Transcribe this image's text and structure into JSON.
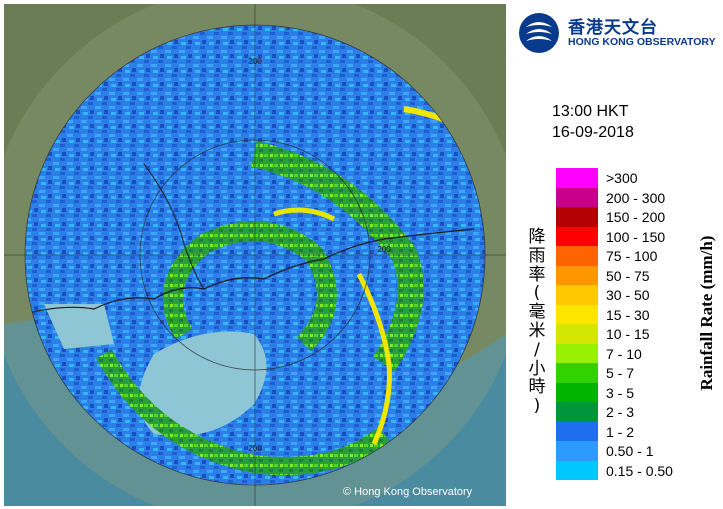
{
  "time": "13:00 HKT",
  "date": "16-09-2018",
  "credit": "© Hong Kong Observatory",
  "logo": {
    "chinese": "香港天文台",
    "english": "HONG KONG OBSERVATORY"
  },
  "range_ring_labels": [
    "200",
    "200",
    "200"
  ],
  "legend": {
    "title_chinese": "降雨率(毫米/小時)",
    "title_english": "Rainfall Rate (mm/h)",
    "classes": [
      {
        "label": ">300",
        "color": "#ff00ff"
      },
      {
        "label": "200 - 300",
        "color": "#c8008c"
      },
      {
        "label": "150 - 200",
        "color": "#b40000"
      },
      {
        "label": "100 - 150",
        "color": "#ff0000"
      },
      {
        "label": "75 - 100",
        "color": "#ff6400"
      },
      {
        "label": "50 - 75",
        "color": "#ff9600"
      },
      {
        "label": "30 - 50",
        "color": "#ffc800"
      },
      {
        "label": "15 - 30",
        "color": "#ffe600"
      },
      {
        "label": "10 - 15",
        "color": "#d2e600"
      },
      {
        "label": "7 - 10",
        "color": "#96f000"
      },
      {
        "label": "5 - 7",
        "color": "#32d200"
      },
      {
        "label": "3 - 5",
        "color": "#00b400"
      },
      {
        "label": "2 - 3",
        "color": "#00963c"
      },
      {
        "label": "1 - 2",
        "color": "#1e6ef0"
      },
      {
        "label": "0.50 - 1",
        "color": "#2c9bff"
      },
      {
        "label": "0.15 - 0.50",
        "color": "#00c8ff"
      }
    ]
  },
  "colors": {
    "land": "#6e7f54",
    "sea": "#4a8ba0",
    "logo_blue": "#0a3a8c"
  }
}
